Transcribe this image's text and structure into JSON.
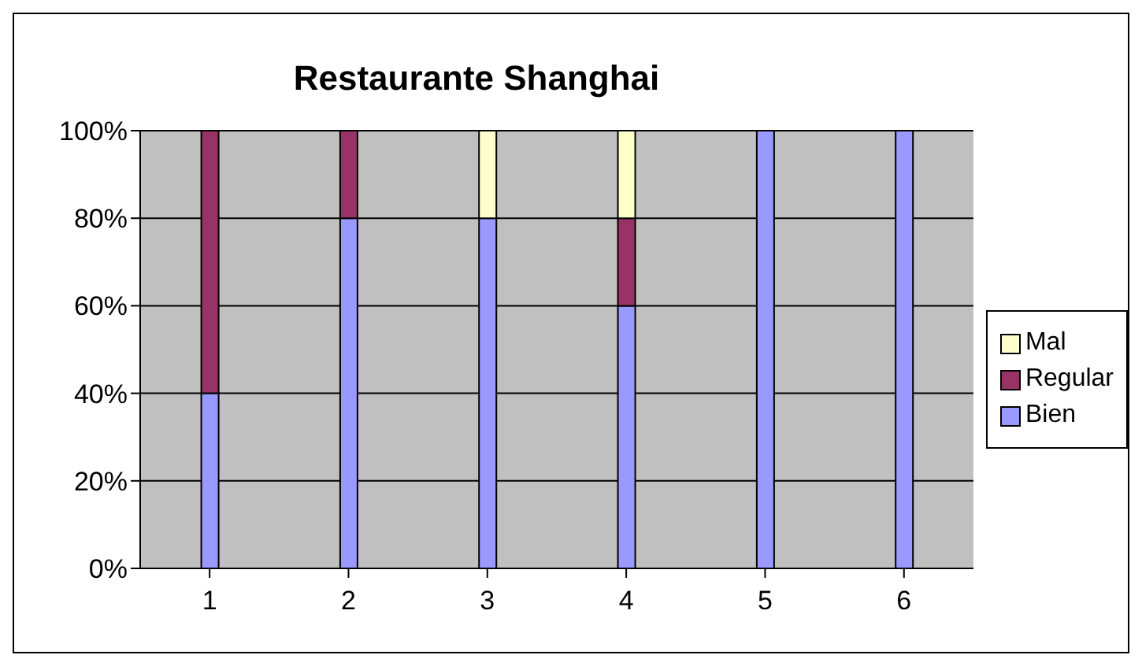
{
  "chart_data": {
    "type": "bar",
    "title": "Restaurante Shanghai",
    "categories": [
      "1",
      "2",
      "3",
      "4",
      "5",
      "6"
    ],
    "stacked": true,
    "series": [
      {
        "name": "Bien",
        "color": "#9999ff",
        "values": [
          40,
          80,
          80,
          60,
          100,
          100
        ]
      },
      {
        "name": "Regular",
        "color": "#993366",
        "values": [
          60,
          20,
          0,
          20,
          0,
          0
        ]
      },
      {
        "name": "Mal",
        "color": "#ffffcc",
        "values": [
          0,
          0,
          20,
          20,
          0,
          0
        ]
      }
    ],
    "ylim": [
      0,
      100
    ],
    "yticks": [
      {
        "value": 0,
        "label": "0%"
      },
      {
        "value": 20,
        "label": "20%"
      },
      {
        "value": 40,
        "label": "40%"
      },
      {
        "value": 60,
        "label": "60%"
      },
      {
        "value": 80,
        "label": "80%"
      },
      {
        "value": 100,
        "label": "100%"
      }
    ],
    "grid": "y",
    "legend": "right"
  }
}
